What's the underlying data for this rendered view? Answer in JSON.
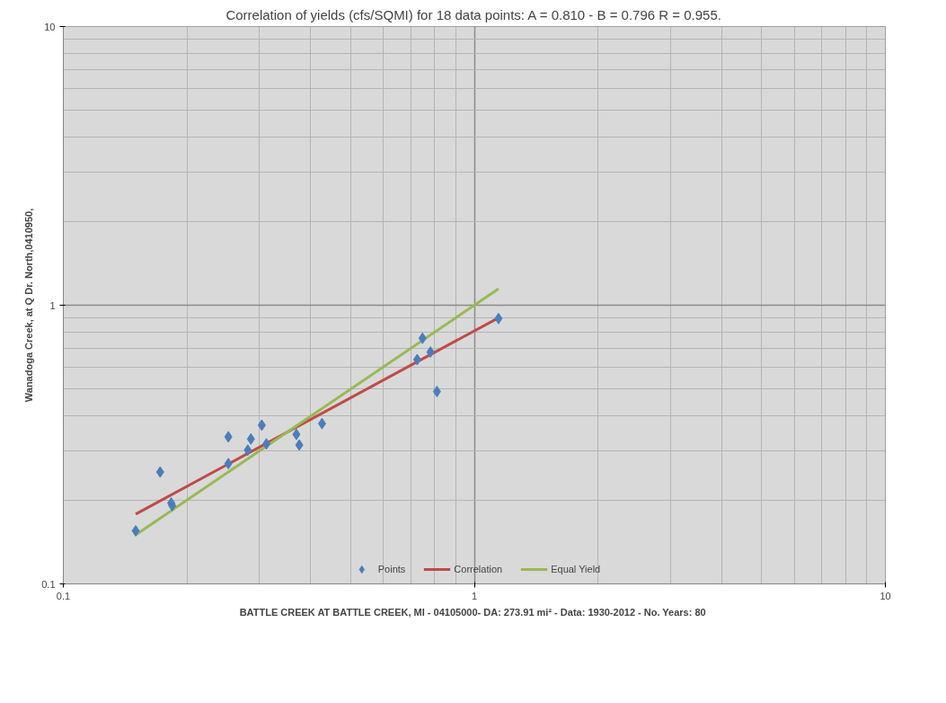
{
  "chart_data": {
    "type": "scatter",
    "title": "Correlation of yields (cfs/SQMI) for 18 data points: A = 0.810 - B = 0.796 R = 0.955.",
    "xlabel": "BATTLE CREEK AT BATTLE CREEK, MI - 04105000- DA:  273.91 mi² - Data: 1930-2012 - No. Years: 80",
    "ylabel": "Wanadoga Creek, at Q Dr. North,0410950,",
    "log": "xy",
    "xlim": [
      0.1,
      10
    ],
    "ylim": [
      0.1,
      10
    ],
    "xticks": [
      0.1,
      1,
      10
    ],
    "yticks": [
      0.1,
      1,
      10
    ],
    "grid": true,
    "legend": "bottom",
    "series": [
      {
        "name": "Points",
        "type": "scatter",
        "marker": "diamond",
        "color": "#4a7ebb",
        "x": [
          0.15,
          0.172,
          0.183,
          0.184,
          0.252,
          0.252,
          0.281,
          0.286,
          0.304,
          0.312,
          0.369,
          0.375,
          0.426,
          0.726,
          0.748,
          0.782,
          0.811,
          1.145
        ],
        "values": [
          0.155,
          0.252,
          0.195,
          0.191,
          0.337,
          0.27,
          0.302,
          0.331,
          0.371,
          0.318,
          0.344,
          0.315,
          0.376,
          0.638,
          0.761,
          0.679,
          0.49,
          0.896
        ]
      },
      {
        "name": "Correlation",
        "type": "line",
        "marker": "none",
        "color": "#be4b48",
        "x": [
          0.15,
          1.126
        ],
        "values": [
          0.178,
          0.889
        ]
      },
      {
        "name": "Equal Yield",
        "type": "line",
        "marker": "none",
        "color": "#98b954",
        "x": [
          0.15,
          1.145
        ],
        "values": [
          0.15,
          1.145
        ]
      }
    ]
  }
}
